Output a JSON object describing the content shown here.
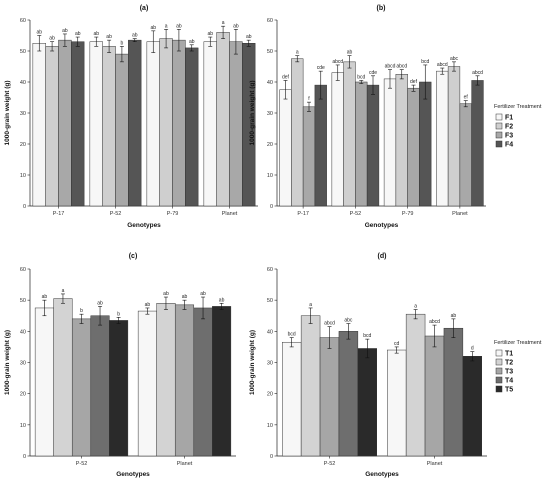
{
  "colors": {
    "F1": "#f7f7f7",
    "F2": "#cfcfcf",
    "F3": "#a8a8a8",
    "F4": "#555555",
    "T1": "#f7f7f7",
    "T2": "#d3d3d3",
    "T3": "#a6a6a6",
    "T4": "#6e6e6e",
    "T5": "#2a2a2a",
    "panel_bg": "#ffffff",
    "axis": "#222222",
    "bar_stroke": "#333333"
  },
  "chart_data": [
    {
      "panel": "(a)",
      "type": "bar",
      "title": "(a)",
      "xlabel": "Genotypes",
      "ylabel": "1000-grain weight (g)",
      "ylim": [
        0,
        60
      ],
      "yticks": [
        0,
        10,
        20,
        30,
        40,
        50,
        60
      ],
      "categories": [
        "P-17",
        "P-52",
        "P-79",
        "Planet"
      ],
      "series": [
        {
          "key": "F1",
          "values": [
            52.5,
            53,
            53,
            53
          ],
          "errors": [
            2.5,
            1.5,
            3.5,
            1.5
          ],
          "letters": [
            "ab",
            "ab",
            "ab",
            "ab"
          ]
        },
        {
          "key": "F2",
          "values": [
            51.5,
            51.5,
            54,
            56
          ],
          "errors": [
            1.5,
            2.0,
            3.0,
            2.0
          ],
          "letters": [
            "ab",
            "ab",
            "a",
            "a"
          ]
        },
        {
          "key": "F3",
          "values": [
            53.5,
            49,
            53.5,
            53
          ],
          "errors": [
            2.0,
            2.5,
            3.5,
            4.0
          ],
          "letters": [
            "ab",
            "b",
            "ab",
            "ab"
          ]
        },
        {
          "key": "F4",
          "values": [
            53,
            53.5,
            51,
            52.5
          ],
          "errors": [
            1.5,
            0.5,
            1.0,
            1.0
          ],
          "letters": [
            "ab",
            "ab",
            "ab",
            "ab"
          ]
        }
      ],
      "legend": null
    },
    {
      "panel": "(b)",
      "type": "bar",
      "title": "(b)",
      "xlabel": "Genotypes",
      "ylabel": "1000-grain weight (g)",
      "ylim": [
        0,
        60
      ],
      "yticks": [
        0,
        10,
        20,
        30,
        40,
        50,
        60
      ],
      "categories": [
        "P-17",
        "P-52",
        "P-79",
        "Planet"
      ],
      "series": [
        {
          "key": "F1",
          "values": [
            37.5,
            43,
            41,
            43.5
          ],
          "errors": [
            3.0,
            2.5,
            3.0,
            1.0
          ],
          "letters": [
            "def",
            "abcd",
            "abcd",
            "abcd"
          ]
        },
        {
          "key": "F2",
          "values": [
            47.5,
            46.5,
            42.5,
            45
          ],
          "errors": [
            1.0,
            2.0,
            1.5,
            1.5
          ],
          "letters": [
            "a",
            "ab",
            "abcd",
            "abc"
          ]
        },
        {
          "key": "F3",
          "values": [
            32,
            40,
            38,
            33
          ],
          "errors": [
            1.5,
            0.5,
            1.0,
            1.0
          ],
          "letters": [
            "f",
            "bcd",
            "def",
            "ef"
          ]
        },
        {
          "key": "F4",
          "values": [
            39,
            39,
            40,
            40.5
          ],
          "errors": [
            4.5,
            3.0,
            5.5,
            1.5
          ],
          "letters": [
            "cde",
            "cde",
            "bcd",
            "abcd"
          ]
        }
      ],
      "legend": {
        "title": "Fertilizer Treatment",
        "entries": [
          "F1",
          "F2",
          "F3",
          "F4"
        ],
        "placement": "right"
      }
    },
    {
      "panel": "(c)",
      "type": "bar",
      "title": "(c)",
      "xlabel": "Genotypes",
      "ylabel": "1000-grain weight (g)",
      "ylim": [
        0,
        60
      ],
      "yticks": [
        0,
        10,
        20,
        30,
        40,
        50,
        60
      ],
      "categories": [
        "P-52",
        "Planet"
      ],
      "series": [
        {
          "key": "T1",
          "values": [
            47.5,
            46.5
          ],
          "errors": [
            2.5,
            1.0
          ],
          "letters": [
            "ab",
            "ab"
          ]
        },
        {
          "key": "T2",
          "values": [
            50.5,
            49
          ],
          "errors": [
            1.5,
            2.0
          ],
          "letters": [
            "a",
            "ab"
          ]
        },
        {
          "key": "T3",
          "values": [
            44,
            48.5
          ],
          "errors": [
            1.5,
            1.5
          ],
          "letters": [
            "b",
            "ab"
          ]
        },
        {
          "key": "T4",
          "values": [
            45,
            47.5
          ],
          "errors": [
            3.0,
            3.5
          ],
          "letters": [
            "ab",
            "ab"
          ]
        },
        {
          "key": "T5",
          "values": [
            43.5,
            48
          ],
          "errors": [
            1.0,
            1.0
          ],
          "letters": [
            "b",
            "ab"
          ]
        }
      ],
      "legend": null
    },
    {
      "panel": "(d)",
      "type": "bar",
      "title": "(d)",
      "xlabel": "Genotypes",
      "ylabel": "1000-grain weight (g)",
      "ylim": [
        0,
        60
      ],
      "yticks": [
        0,
        10,
        20,
        30,
        40,
        50,
        60
      ],
      "categories": [
        "P-52",
        "Planet"
      ],
      "series": [
        {
          "key": "T1",
          "values": [
            36.5,
            34
          ],
          "errors": [
            1.5,
            1.0
          ],
          "letters": [
            "bcd",
            "cd"
          ]
        },
        {
          "key": "T2",
          "values": [
            45,
            45.5
          ],
          "errors": [
            2.5,
            1.5
          ],
          "letters": [
            "a",
            "a"
          ]
        },
        {
          "key": "T3",
          "values": [
            38,
            38.5
          ],
          "errors": [
            3.5,
            3.5
          ],
          "letters": [
            "abcd",
            "abcd"
          ]
        },
        {
          "key": "T4",
          "values": [
            40,
            41
          ],
          "errors": [
            2.5,
            3.0
          ],
          "letters": [
            "abc",
            "ab"
          ]
        },
        {
          "key": "T5",
          "values": [
            34.5,
            32
          ],
          "errors": [
            3.0,
            1.5
          ],
          "letters": [
            "bcd",
            "d"
          ]
        }
      ],
      "legend": {
        "title": "Fertilizer Treatment",
        "entries": [
          "T1",
          "T2",
          "T3",
          "T4",
          "T5"
        ],
        "placement": "right"
      }
    }
  ]
}
